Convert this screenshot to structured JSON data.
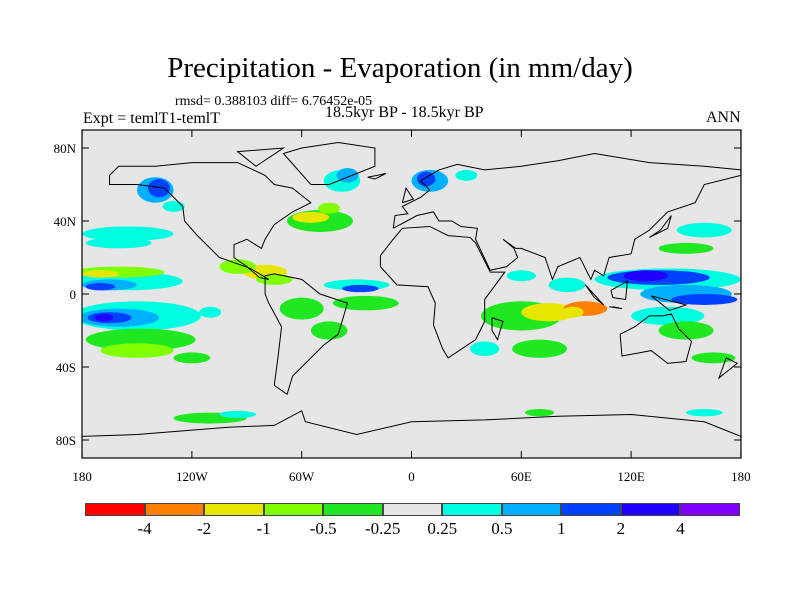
{
  "title": "Precipitation - Evaporation (in mm/day)",
  "stats": "rmsd= 0.388103 diff= 6.76452e-05",
  "left_subtitle": "Expt = temlT1-temlT",
  "center_subtitle": "18.5kyr BP - 18.5kyr BP",
  "right_subtitle": "ANN",
  "axes": {
    "y_ticks": [
      {
        "label": "80N",
        "lat": 80
      },
      {
        "label": "40N",
        "lat": 40
      },
      {
        "label": "0",
        "lat": 0
      },
      {
        "label": "40S",
        "lat": -40
      },
      {
        "label": "80S",
        "lat": -80
      }
    ],
    "x_ticks": [
      {
        "label": "180",
        "lon": -180
      },
      {
        "label": "120W",
        "lon": -120
      },
      {
        "label": "60W",
        "lon": -60
      },
      {
        "label": "0",
        "lon": 0
      },
      {
        "label": "60E",
        "lon": 60
      },
      {
        "label": "120E",
        "lon": 120
      },
      {
        "label": "180",
        "lon": 180
      }
    ]
  },
  "colorbar": {
    "colors": [
      "#ff0000",
      "#ff8000",
      "#e6e600",
      "#80ff00",
      "#20e820",
      "#e6e6e6",
      "#00ffe0",
      "#00b0ff",
      "#0040ff",
      "#2000ff",
      "#8000ff"
    ],
    "labels": [
      "-4",
      "-2",
      "-1",
      "-0.5",
      "-0.25",
      "0.25",
      "0.5",
      "1",
      "2",
      "4"
    ]
  },
  "colors": {
    "ocean_background": "#e6e6e6",
    "coastline": "#000000"
  }
}
